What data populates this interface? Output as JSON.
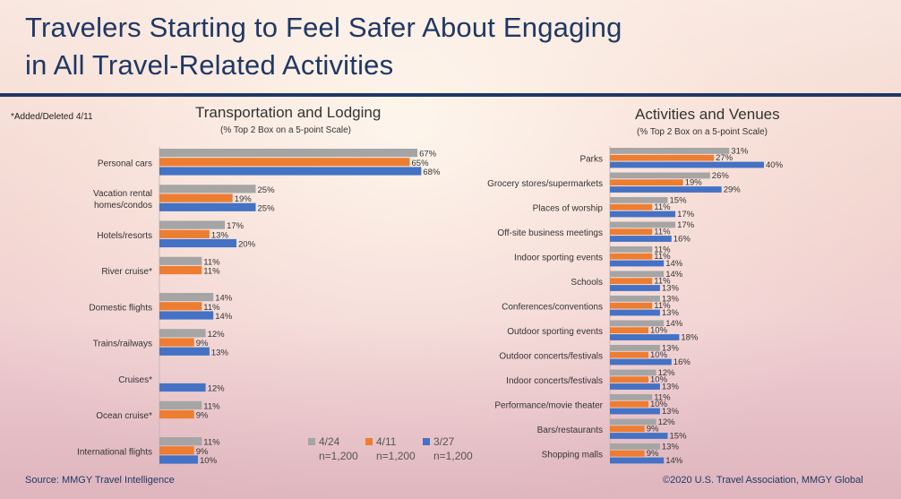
{
  "title": {
    "line1": "Travelers Starting to Feel Safer About Engaging",
    "line2": "in All Travel-Related Activities"
  },
  "note": "*Added/Deleted 4/11",
  "colors": {
    "s1": "#a5a5a5",
    "s2": "#ed7d31",
    "s3": "#4472c4",
    "title": "#1f3864"
  },
  "legend": [
    {
      "label": "4/24",
      "n": "n=1,200"
    },
    {
      "label": "4/11",
      "n": "n=1,200"
    },
    {
      "label": "3/27",
      "n": "n=1,200"
    }
  ],
  "footer": {
    "source": "Source: MMGY Travel Intelligence",
    "copyright": "©2020 U.S. Travel Association, MMGY Global"
  },
  "chart_data": [
    {
      "type": "bar",
      "orientation": "horizontal",
      "title": "Transportation and Lodging",
      "subtitle": "(% Top 2 Box on a 5-point Scale)",
      "categories": [
        "Personal cars",
        "Vacation rental homes/condos",
        "Hotels/resorts",
        "River cruise*",
        "Domestic flights",
        "Trains/railways",
        "Cruises*",
        "Ocean cruise*",
        "International flights"
      ],
      "category_lines": [
        [
          "Personal cars"
        ],
        [
          "Vacation rental",
          "homes/condos"
        ],
        [
          "Hotels/resorts"
        ],
        [
          "River cruise*"
        ],
        [
          "Domestic flights"
        ],
        [
          "Trains/railways"
        ],
        [
          "Cruises*"
        ],
        [
          "Ocean cruise*"
        ],
        [
          "International flights"
        ]
      ],
      "series": [
        {
          "name": "4/24",
          "values": [
            67,
            25,
            17,
            11,
            14,
            12,
            null,
            11,
            11
          ]
        },
        {
          "name": "4/11",
          "values": [
            65,
            19,
            13,
            11,
            11,
            9,
            null,
            9,
            9
          ]
        },
        {
          "name": "3/27",
          "values": [
            68,
            25,
            20,
            null,
            14,
            13,
            12,
            null,
            10
          ]
        }
      ],
      "xlim": [
        0,
        100
      ],
      "unit": "%",
      "grid": false
    },
    {
      "type": "bar",
      "orientation": "horizontal",
      "title": "Activities and Venues",
      "subtitle": "(% Top 2 Box on a 5-point Scale)",
      "categories": [
        "Parks",
        "Grocery stores/supermarkets",
        "Places of worship",
        "Off-site business meetings",
        "Indoor sporting events",
        "Schools",
        "Conferences/conventions",
        "Outdoor sporting events",
        "Outdoor concerts/festivals",
        "Indoor concerts/festivals",
        "Performance/movie theater",
        "Bars/restaurants",
        "Shopping malls"
      ],
      "category_lines": [
        [
          "Parks"
        ],
        [
          "Grocery stores/supermarkets"
        ],
        [
          "Places of worship"
        ],
        [
          "Off-site business meetings"
        ],
        [
          "Indoor sporting events"
        ],
        [
          "Schools"
        ],
        [
          "Conferences/conventions"
        ],
        [
          "Outdoor sporting events"
        ],
        [
          "Outdoor concerts/festivals"
        ],
        [
          "Indoor concerts/festivals"
        ],
        [
          "Performance/movie theater"
        ],
        [
          "Bars/restaurants"
        ],
        [
          "Shopping malls"
        ]
      ],
      "series": [
        {
          "name": "4/24",
          "values": [
            31,
            26,
            15,
            17,
            11,
            14,
            13,
            14,
            13,
            12,
            11,
            12,
            13
          ]
        },
        {
          "name": "4/11",
          "values": [
            27,
            19,
            11,
            11,
            11,
            11,
            11,
            10,
            10,
            10,
            10,
            9,
            9
          ]
        },
        {
          "name": "3/27",
          "values": [
            40,
            29,
            17,
            16,
            14,
            13,
            13,
            18,
            16,
            13,
            13,
            15,
            14
          ]
        }
      ],
      "xlim": [
        0,
        100
      ],
      "unit": "%",
      "grid": false
    }
  ]
}
